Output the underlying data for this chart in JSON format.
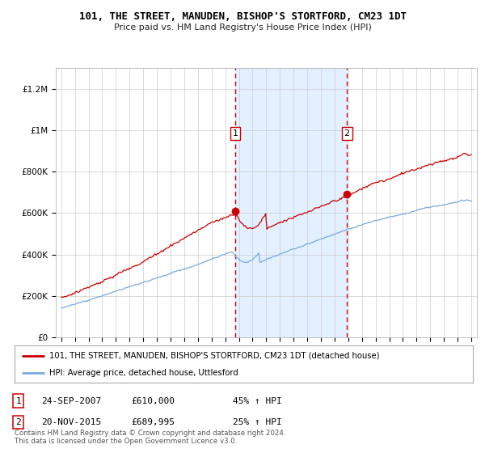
{
  "title": "101, THE STREET, MANUDEN, BISHOP'S STORTFORD, CM23 1DT",
  "subtitle": "Price paid vs. HM Land Registry's House Price Index (HPI)",
  "ylim": [
    0,
    1300000
  ],
  "yticks": [
    0,
    200000,
    400000,
    600000,
    800000,
    1000000,
    1200000
  ],
  "ytick_labels": [
    "£0",
    "£200K",
    "£400K",
    "£600K",
    "£800K",
    "£1M",
    "£1.2M"
  ],
  "sale1_year": 2007.73,
  "sale1_price": 610000,
  "sale1_label": "1",
  "sale2_year": 2015.9,
  "sale2_price": 689995,
  "sale2_label": "2",
  "line_color_red": "#cc0000",
  "line_color_blue": "#7aaadd",
  "shade_color": "#ddeeff",
  "dashed_color": "#cc0000",
  "bg_color": "#ffffff",
  "grid_color": "#cccccc",
  "legend_line1": "101, THE STREET, MANUDEN, BISHOP'S STORTFORD, CM23 1DT (detached house)",
  "legend_line2": "HPI: Average price, detached house, Uttlesford",
  "footer": "Contains HM Land Registry data © Crown copyright and database right 2024.\nThis data is licensed under the Open Government Licence v3.0.",
  "table_rows": [
    {
      "num": "1",
      "date": "24-SEP-2007",
      "price": "£610,000",
      "pct": "45% ↑ HPI"
    },
    {
      "num": "2",
      "date": "20-NOV-2015",
      "price": "£689,995",
      "pct": "25% ↑ HPI"
    }
  ]
}
